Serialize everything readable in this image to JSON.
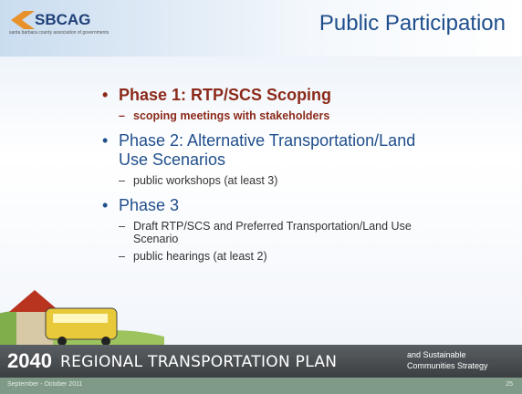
{
  "header": {
    "logo": "SBCAG",
    "logo_subtitle": "santa barbara county association of governments",
    "title": "Public Participation"
  },
  "bullets": [
    {
      "text": "Phase 1: RTP/SCS Scoping",
      "sub": [
        "scoping meetings with stakeholders"
      ]
    },
    {
      "text": "Phase 2: Alternative Transportation/Land Use Scenarios",
      "sub": [
        "public workshops (at least 3)"
      ]
    },
    {
      "text": "Phase 3",
      "sub": [
        "Draft RTP/SCS and Preferred Transportation/Land Use Scenario",
        "public hearings (at least 2)"
      ]
    }
  ],
  "footer": {
    "year": "2040",
    "plan": "REGIONAL TRANSPORTATION PLAN",
    "and": "and Sustainable",
    "strategy": "Communities Strategy",
    "date": "September - October 2011",
    "page": "25"
  }
}
